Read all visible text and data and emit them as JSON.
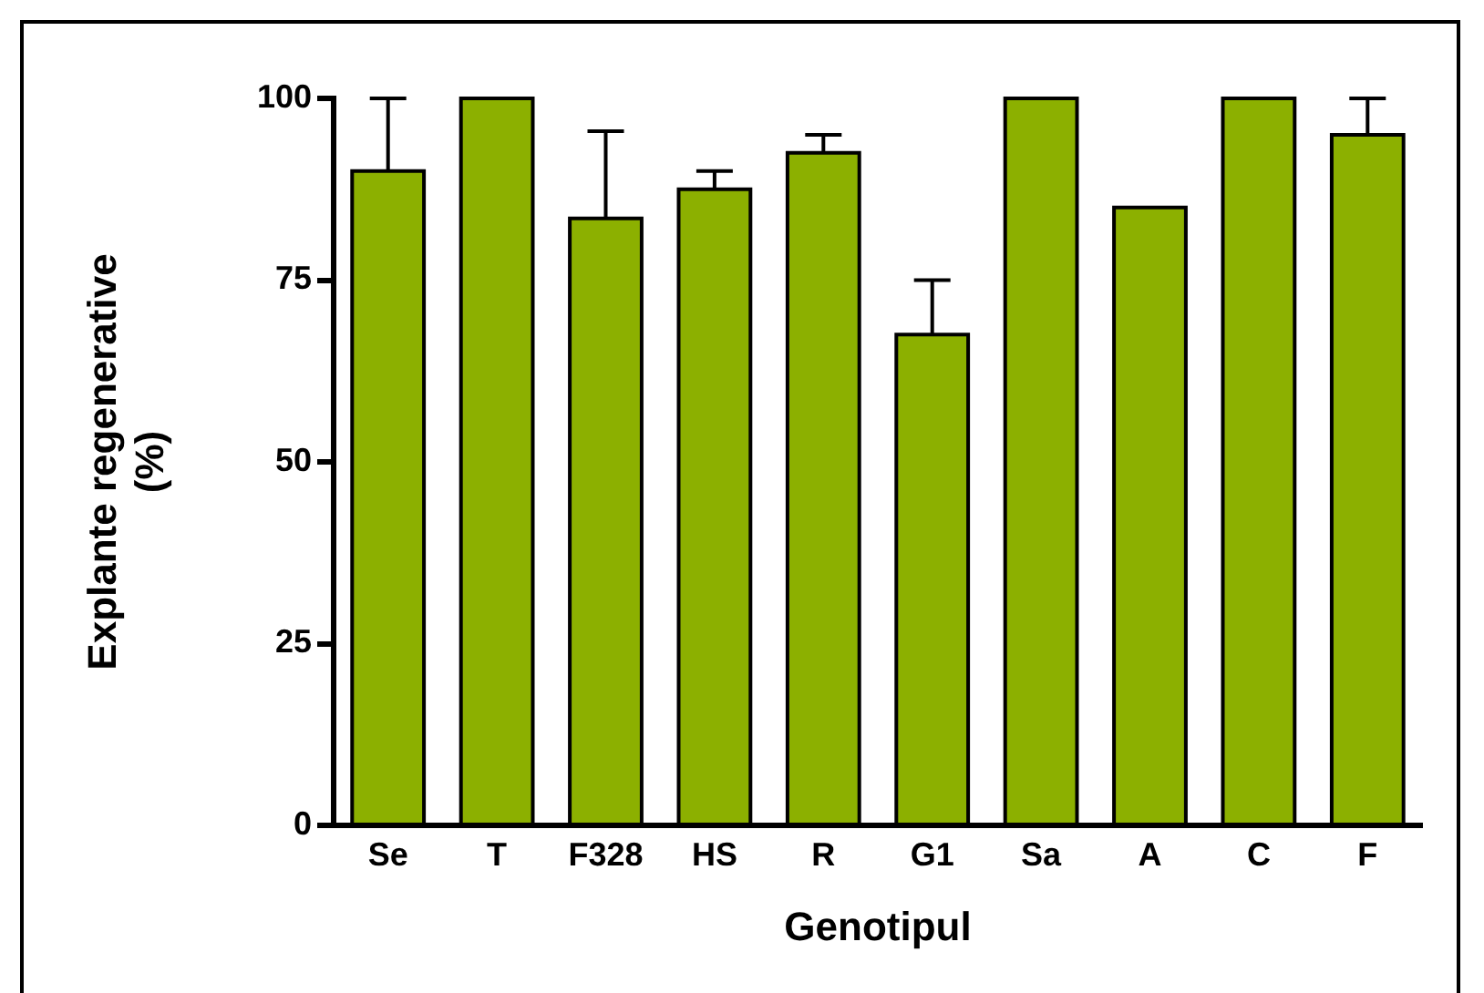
{
  "chart_data": {
    "type": "bar",
    "xlabel": "Genotipul",
    "ylabel": "Explante regenerative\n(%)",
    "categories": [
      "Se",
      "T",
      "F328",
      "HS",
      "R",
      "G1",
      "Sa",
      "A",
      "C",
      "F"
    ],
    "values": [
      90,
      100,
      83.5,
      87.5,
      92.5,
      67.5,
      100,
      85,
      100,
      95
    ],
    "errors": [
      [
        90,
        100
      ],
      null,
      [
        83.5,
        95.5
      ],
      [
        87.5,
        90
      ],
      [
        92.5,
        95
      ],
      [
        67.5,
        75
      ],
      null,
      null,
      null,
      [
        95,
        100
      ]
    ],
    "color": "#8cb000",
    "ylim": [
      0,
      100
    ],
    "yticks": [
      0,
      25,
      50,
      75,
      100
    ],
    "grid": false,
    "legend": false
  }
}
